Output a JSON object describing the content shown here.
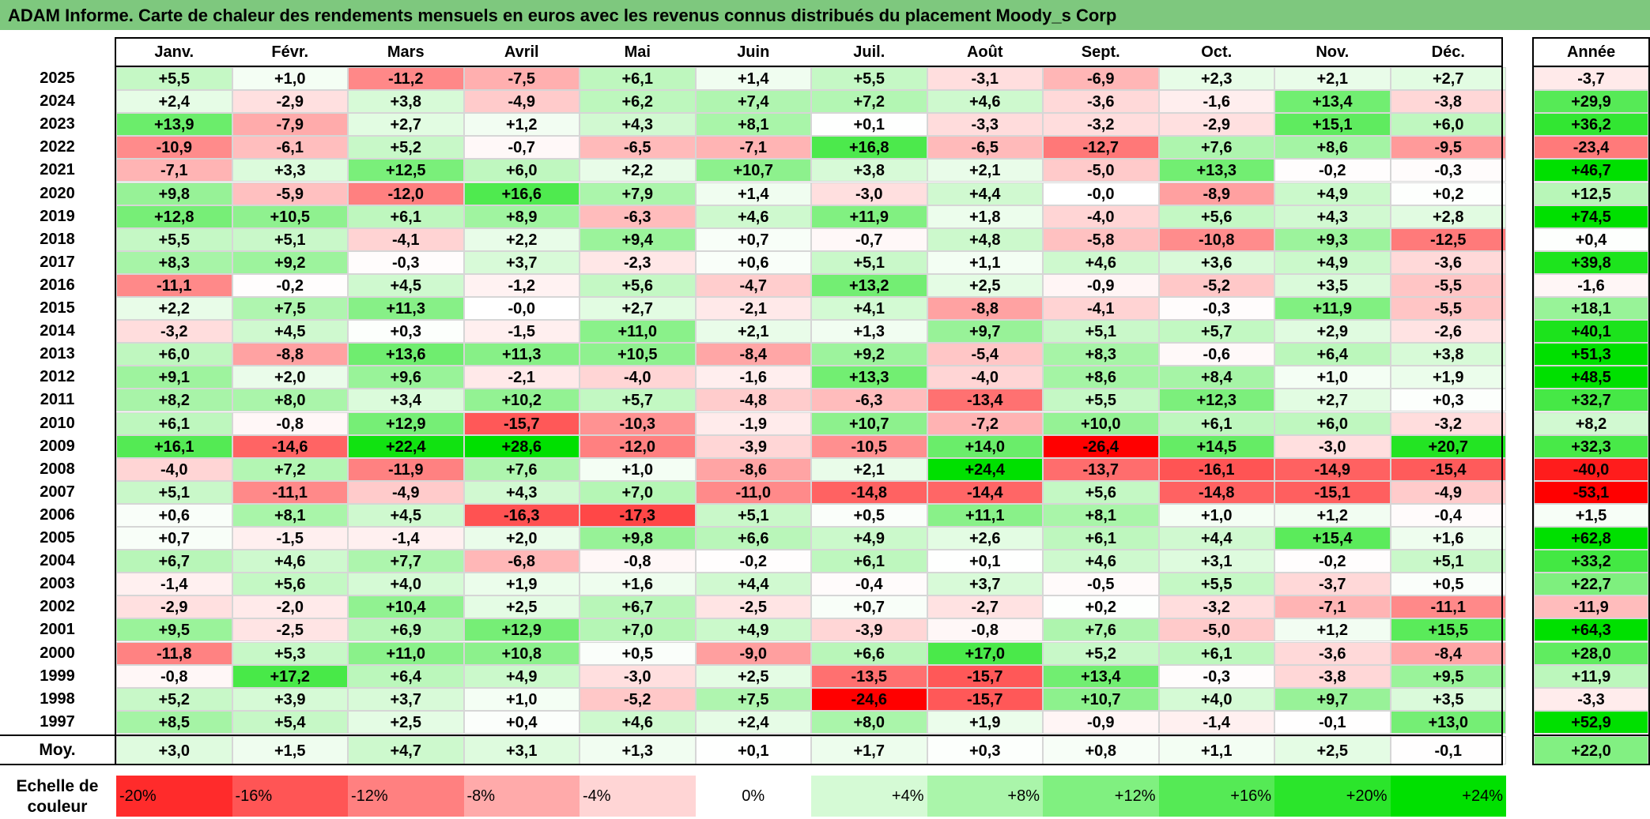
{
  "title": "ADAM Informe. Carte de chaleur des rendements mensuels en euros avec les revenus connus distribués du placement Moody_s Corp",
  "chart_data": {
    "type": "heatmap",
    "title": "ADAM Informe. Carte de chaleur des rendements mensuels en euros avec les revenus connus distribués du placement Moody_s Corp",
    "columns": [
      "Janv.",
      "Févr.",
      "Mars",
      "Avril",
      "Mai",
      "Juin",
      "Juil.",
      "Août",
      "Sept.",
      "Oct.",
      "Nov.",
      "Déc."
    ],
    "annual_header": "Année",
    "rows": [
      {
        "year": "2025",
        "values": [
          "+5,5",
          "+1,0",
          "-11,2",
          "-7,5",
          "+6,1",
          "+1,4",
          "+5,5",
          "-3,1",
          "-6,9",
          "+2,3",
          "+2,1",
          "+2,7"
        ],
        "annual": "-3,7"
      },
      {
        "year": "2024",
        "values": [
          "+2,4",
          "-2,9",
          "+3,8",
          "-4,9",
          "+6,2",
          "+7,4",
          "+7,2",
          "+4,6",
          "-3,6",
          "-1,6",
          "+13,4",
          "-3,8"
        ],
        "annual": "+29,9"
      },
      {
        "year": "2023",
        "values": [
          "+13,9",
          "-7,9",
          "+2,7",
          "+1,2",
          "+4,3",
          "+8,1",
          "+0,1",
          "-3,3",
          "-3,2",
          "-2,9",
          "+15,1",
          "+6,0"
        ],
        "annual": "+36,2"
      },
      {
        "year": "2022",
        "values": [
          "-10,9",
          "-6,1",
          "+5,2",
          "-0,7",
          "-6,5",
          "-7,1",
          "+16,8",
          "-6,5",
          "-12,7",
          "+7,6",
          "+8,6",
          "-9,5"
        ],
        "annual": "-23,4"
      },
      {
        "year": "2021",
        "values": [
          "-7,1",
          "+3,3",
          "+12,5",
          "+6,0",
          "+2,2",
          "+10,7",
          "+3,8",
          "+2,1",
          "-5,0",
          "+13,3",
          "-0,2",
          "-0,3"
        ],
        "annual": "+46,7"
      },
      {
        "year": "2020",
        "values": [
          "+9,8",
          "-5,9",
          "-12,0",
          "+16,6",
          "+7,9",
          "+1,4",
          "-3,0",
          "+4,4",
          "-0,0",
          "-8,9",
          "+4,9",
          "+0,2"
        ],
        "annual": "+12,5"
      },
      {
        "year": "2019",
        "values": [
          "+12,8",
          "+10,5",
          "+6,1",
          "+8,9",
          "-6,3",
          "+4,6",
          "+11,9",
          "+1,8",
          "-4,0",
          "+5,6",
          "+4,3",
          "+2,8"
        ],
        "annual": "+74,5"
      },
      {
        "year": "2018",
        "values": [
          "+5,5",
          "+5,1",
          "-4,1",
          "+2,2",
          "+9,4",
          "+0,7",
          "-0,7",
          "+4,8",
          "-5,8",
          "-10,8",
          "+9,3",
          "-12,5"
        ],
        "annual": "+0,4"
      },
      {
        "year": "2017",
        "values": [
          "+8,3",
          "+9,2",
          "-0,3",
          "+3,7",
          "-2,3",
          "+0,6",
          "+5,1",
          "+1,1",
          "+4,6",
          "+3,6",
          "+4,9",
          "-3,6"
        ],
        "annual": "+39,8"
      },
      {
        "year": "2016",
        "values": [
          "-11,1",
          "-0,2",
          "+4,5",
          "-1,2",
          "+5,6",
          "-4,7",
          "+13,2",
          "+2,5",
          "-0,9",
          "-5,2",
          "+3,5",
          "-5,5"
        ],
        "annual": "-1,6"
      },
      {
        "year": "2015",
        "values": [
          "+2,2",
          "+7,5",
          "+11,3",
          "-0,0",
          "+2,7",
          "-2,1",
          "+4,1",
          "-8,8",
          "-4,1",
          "-0,3",
          "+11,9",
          "-5,5"
        ],
        "annual": "+18,1"
      },
      {
        "year": "2014",
        "values": [
          "-3,2",
          "+4,5",
          "+0,3",
          "-1,5",
          "+11,0",
          "+2,1",
          "+1,3",
          "+9,7",
          "+5,1",
          "+5,7",
          "+2,9",
          "-2,6"
        ],
        "annual": "+40,1"
      },
      {
        "year": "2013",
        "values": [
          "+6,0",
          "-8,8",
          "+13,6",
          "+11,3",
          "+10,5",
          "-8,4",
          "+9,2",
          "-5,4",
          "+8,3",
          "-0,6",
          "+6,4",
          "+3,8"
        ],
        "annual": "+51,3"
      },
      {
        "year": "2012",
        "values": [
          "+9,1",
          "+2,0",
          "+9,6",
          "-2,1",
          "-4,0",
          "-1,6",
          "+13,3",
          "-4,0",
          "+8,6",
          "+8,4",
          "+1,0",
          "+1,9"
        ],
        "annual": "+48,5"
      },
      {
        "year": "2011",
        "values": [
          "+8,2",
          "+8,0",
          "+3,4",
          "+10,2",
          "+5,7",
          "-4,8",
          "-6,3",
          "-13,4",
          "+5,5",
          "+12,3",
          "+2,7",
          "+0,3"
        ],
        "annual": "+32,7"
      },
      {
        "year": "2010",
        "values": [
          "+6,1",
          "-0,8",
          "+12,9",
          "-15,7",
          "-10,3",
          "-1,9",
          "+10,7",
          "-7,2",
          "+10,0",
          "+6,1",
          "+6,0",
          "-3,2"
        ],
        "annual": "+8,2"
      },
      {
        "year": "2009",
        "values": [
          "+16,1",
          "-14,6",
          "+22,4",
          "+28,6",
          "-12,0",
          "-3,9",
          "-10,5",
          "+14,0",
          "-26,4",
          "+14,5",
          "-3,0",
          "+20,7"
        ],
        "annual": "+32,3"
      },
      {
        "year": "2008",
        "values": [
          "-4,0",
          "+7,2",
          "-11,9",
          "+7,6",
          "+1,0",
          "-8,6",
          "+2,1",
          "+24,4",
          "-13,7",
          "-16,1",
          "-14,9",
          "-15,4"
        ],
        "annual": "-40,0"
      },
      {
        "year": "2007",
        "values": [
          "+5,1",
          "-11,1",
          "-4,9",
          "+4,3",
          "+7,0",
          "-11,0",
          "-14,8",
          "-14,4",
          "+5,6",
          "-14,8",
          "-15,1",
          "-4,9"
        ],
        "annual": "-53,1"
      },
      {
        "year": "2006",
        "values": [
          "+0,6",
          "+8,1",
          "+4,5",
          "-16,3",
          "-17,3",
          "+5,1",
          "+0,5",
          "+11,1",
          "+8,1",
          "+1,0",
          "+1,2",
          "-0,4"
        ],
        "annual": "+1,5"
      },
      {
        "year": "2005",
        "values": [
          "+0,7",
          "-1,5",
          "-1,4",
          "+2,0",
          "+9,8",
          "+6,6",
          "+4,9",
          "+2,6",
          "+6,1",
          "+4,4",
          "+15,4",
          "+1,6"
        ],
        "annual": "+62,8"
      },
      {
        "year": "2004",
        "values": [
          "+6,7",
          "+4,6",
          "+7,7",
          "-6,8",
          "-0,8",
          "-0,2",
          "+6,1",
          "+0,1",
          "+4,6",
          "+3,1",
          "-0,2",
          "+5,1"
        ],
        "annual": "+33,2"
      },
      {
        "year": "2003",
        "values": [
          "-1,4",
          "+5,6",
          "+4,0",
          "+1,9",
          "+1,6",
          "+4,4",
          "-0,4",
          "+3,7",
          "-0,5",
          "+5,5",
          "-3,7",
          "+0,5"
        ],
        "annual": "+22,7"
      },
      {
        "year": "2002",
        "values": [
          "-2,9",
          "-2,0",
          "+10,4",
          "+2,5",
          "+6,7",
          "-2,5",
          "+0,7",
          "-2,7",
          "+0,2",
          "-3,2",
          "-7,1",
          "-11,1"
        ],
        "annual": "-11,9"
      },
      {
        "year": "2001",
        "values": [
          "+9,5",
          "-2,5",
          "+6,9",
          "+12,9",
          "+7,0",
          "+4,9",
          "-3,9",
          "-0,8",
          "+7,6",
          "-5,0",
          "+1,2",
          "+15,5"
        ],
        "annual": "+64,3"
      },
      {
        "year": "2000",
        "values": [
          "-11,8",
          "+5,3",
          "+11,0",
          "+10,8",
          "+0,5",
          "-9,0",
          "+6,6",
          "+17,0",
          "+5,2",
          "+6,1",
          "-3,6",
          "-8,4"
        ],
        "annual": "+28,0"
      },
      {
        "year": "1999",
        "values": [
          "-0,8",
          "+17,2",
          "+6,4",
          "+4,9",
          "-3,0",
          "+2,5",
          "-13,5",
          "-15,7",
          "+13,4",
          "-0,3",
          "-3,8",
          "+9,5"
        ],
        "annual": "+11,9"
      },
      {
        "year": "1998",
        "values": [
          "+5,2",
          "+3,9",
          "+3,7",
          "+1,0",
          "-5,2",
          "+7,5",
          "-24,6",
          "-15,7",
          "+10,7",
          "+4,0",
          "+9,7",
          "+3,5"
        ],
        "annual": "-3,3"
      },
      {
        "year": "1997",
        "values": [
          "+8,5",
          "+5,4",
          "+2,5",
          "+0,4",
          "+4,6",
          "+2,4",
          "+8,0",
          "+1,9",
          "-0,9",
          "-1,4",
          "-0,1",
          "+13,0"
        ],
        "annual": "+52,9"
      }
    ],
    "average": {
      "label": "Moy.",
      "values": [
        "+3,0",
        "+1,5",
        "+4,7",
        "+3,1",
        "+1,3",
        "+0,1",
        "+1,7",
        "+0,3",
        "+0,8",
        "+1,1",
        "+2,5",
        "-0,1"
      ],
      "annual": "+22,0"
    },
    "scale": {
      "label_line1": "Echelle de",
      "label_line2": "couleur",
      "stops": [
        "-20%",
        "-16%",
        "-12%",
        "-8%",
        "-4%",
        "0%",
        "+4%",
        "+8%",
        "+12%",
        "+16%",
        "+20%",
        "+24%"
      ]
    },
    "colors": {
      "negative_max": "#ff0000",
      "positive_max": "#00e000",
      "neutral": "#ffffff",
      "title_bar": "#7ec87e"
    }
  }
}
